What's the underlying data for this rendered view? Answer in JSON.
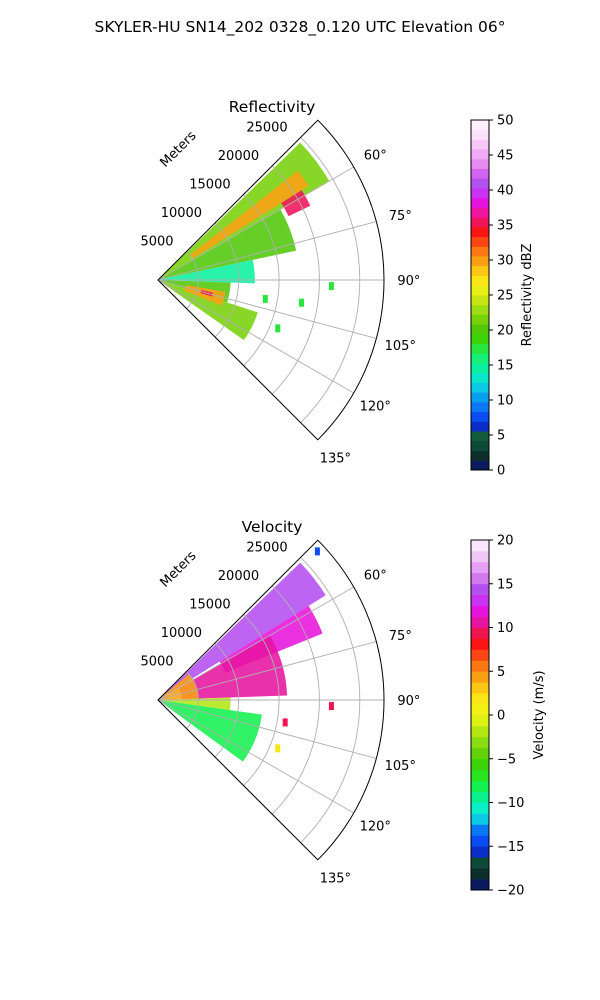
{
  "figure": {
    "suptitle": "SKYLER-HU  SN14_202  0328_0.120 UTC Elevation 06°"
  },
  "chart_data": [
    {
      "type": "polar-sector",
      "title": "Reflectivity",
      "radial_label": "Meters",
      "range_ticks": [
        "5000",
        "10000",
        "15000",
        "20000",
        "25000"
      ],
      "range_tick_values": [
        5000,
        10000,
        15000,
        20000,
        25000
      ],
      "azimuth_ticks": [
        "60°",
        "75°",
        "90°",
        "105°",
        "120°",
        "135°"
      ],
      "azimuth_tick_values": [
        60,
        75,
        90,
        105,
        120,
        135
      ],
      "azimuth_range": [
        45,
        135
      ],
      "range_max": 28000,
      "grid": true,
      "colorbar": {
        "label": "Reflectivity dBZ",
        "ticks": [
          "0",
          "5",
          "10",
          "15",
          "20",
          "25",
          "30",
          "35",
          "40",
          "45",
          "50"
        ],
        "min": 0,
        "max": 50,
        "colors": [
          "#0a1a5c",
          "#0d2f2b",
          "#0e4a35",
          "#125c3a",
          "#0a2ec8",
          "#0a4df0",
          "#0a78f5",
          "#0aa0f0",
          "#0ac8e6",
          "#0ae6c8",
          "#0af0a0",
          "#14f078",
          "#28e63c",
          "#3cd20a",
          "#50c80a",
          "#78d20a",
          "#a0dc14",
          "#c8e614",
          "#e6f014",
          "#fae614",
          "#fac814",
          "#faa014",
          "#fa7814",
          "#fa4614",
          "#fa1414",
          "#f0145a",
          "#f014a0",
          "#e614dc",
          "#c832f0",
          "#b450f0",
          "#d264f0",
          "#e68cf0",
          "#f0aaf5",
          "#f5c8f8",
          "#fae1fb",
          "#fdf0fd"
        ]
      },
      "echo_regions": [
        {
          "az": [
            46,
            60
          ],
          "r": [
            0,
            24500
          ],
          "value": 22
        },
        {
          "az": [
            60,
            78
          ],
          "r": [
            0,
            17500
          ],
          "value": 20
        },
        {
          "az": [
            78,
            92
          ],
          "r": [
            0,
            12000
          ],
          "value": 14
        },
        {
          "az": [
            92,
            108
          ],
          "r": [
            0,
            9000
          ],
          "value": 20
        },
        {
          "az": [
            108,
            125
          ],
          "r": [
            0,
            13000
          ],
          "value": 22
        },
        {
          "az": [
            52,
            58
          ],
          "r": [
            5000,
            22000
          ],
          "value": 30
        },
        {
          "az": [
            58,
            64
          ],
          "r": [
            18000,
            21000
          ],
          "value": 36
        },
        {
          "az": [
            100,
            112
          ],
          "r": [
            3500,
            8500
          ],
          "value": 30
        },
        {
          "az": [
            103,
            107
          ],
          "r": [
            5500,
            7000
          ],
          "value": 35
        }
      ],
      "scatter_echoes": [
        {
          "az": 100,
          "r": 13500,
          "value": 18
        },
        {
          "az": 99,
          "r": 18000,
          "value": 18
        },
        {
          "az": 112,
          "r": 16000,
          "value": 18
        },
        {
          "az": 92,
          "r": 21500,
          "value": 17
        }
      ]
    },
    {
      "type": "polar-sector",
      "title": "Velocity",
      "radial_label": "Meters",
      "range_ticks": [
        "5000",
        "10000",
        "15000",
        "20000",
        "25000"
      ],
      "range_tick_values": [
        5000,
        10000,
        15000,
        20000,
        25000
      ],
      "azimuth_ticks": [
        "60°",
        "75°",
        "90°",
        "105°",
        "120°",
        "135°"
      ],
      "azimuth_tick_values": [
        60,
        75,
        90,
        105,
        120,
        135
      ],
      "azimuth_range": [
        45,
        135
      ],
      "range_max": 28000,
      "grid": true,
      "colorbar": {
        "label": "Velocity (m/s)",
        "ticks": [
          "−20",
          "−15",
          "−10",
          "−5",
          "0",
          "5",
          "10",
          "15",
          "20"
        ],
        "min": -20,
        "max": 20,
        "colors": [
          "#0a1a5c",
          "#0d2f2b",
          "#0e4a35",
          "#0a2ec8",
          "#0a4df0",
          "#0a78f5",
          "#0ac8e6",
          "#0af0c8",
          "#0af08c",
          "#14f050",
          "#28e61e",
          "#3cd20a",
          "#64d20a",
          "#8cdc14",
          "#b4e614",
          "#dcf014",
          "#f0f014",
          "#fae614",
          "#fac814",
          "#faa014",
          "#fa7814",
          "#fa4614",
          "#fa1414",
          "#f01450",
          "#e614a0",
          "#e614dc",
          "#c832f0",
          "#b450f0",
          "#d278f0",
          "#e6a0f5",
          "#f0c8f8",
          "#fae6fb"
        ]
      },
      "echo_regions": [
        {
          "az": [
            46,
            58
          ],
          "r": [
            0,
            24500
          ],
          "value": 14
        },
        {
          "az": [
            58,
            68
          ],
          "r": [
            9000,
            22000
          ],
          "value": 12
        },
        {
          "az": [
            60,
            88
          ],
          "r": [
            3000,
            16000
          ],
          "value": 10
        },
        {
          "az": [
            50,
            88
          ],
          "r": [
            0,
            5000
          ],
          "value": 4
        },
        {
          "az": [
            88,
            98
          ],
          "r": [
            0,
            9000
          ],
          "value": -2
        },
        {
          "az": [
            98,
            126
          ],
          "r": [
            0,
            13000
          ],
          "value": -8
        }
      ],
      "scatter_echoes": [
        {
          "az": 92,
          "r": 21500,
          "value": 9
        },
        {
          "az": 100,
          "r": 16000,
          "value": 9
        },
        {
          "az": 112,
          "r": 16000,
          "value": 2
        },
        {
          "az": 47,
          "r": 27000,
          "value": -14
        }
      ]
    }
  ]
}
